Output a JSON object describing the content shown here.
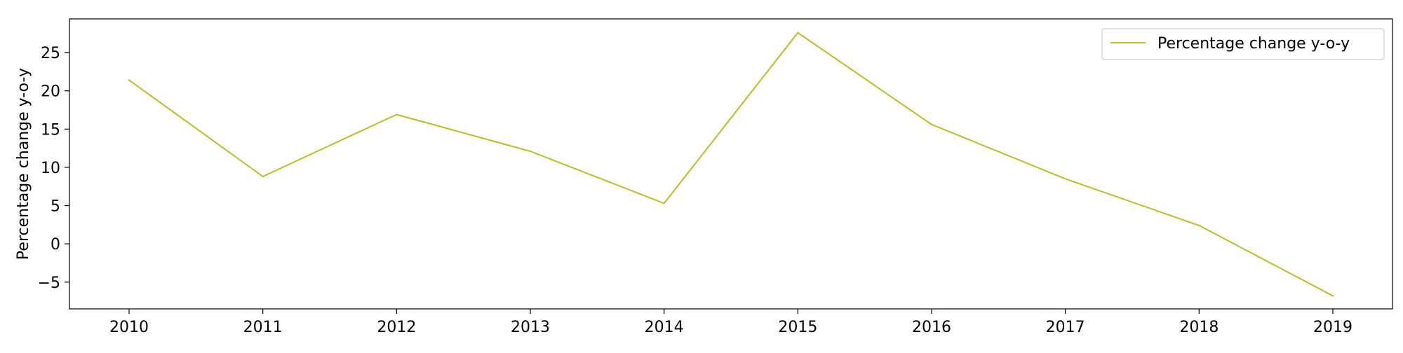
{
  "chart_data": {
    "type": "line",
    "title": "",
    "xlabel": "",
    "ylabel": "Percentage change y-o-y",
    "categories": [
      "2010",
      "2011",
      "2012",
      "2013",
      "2014",
      "2015",
      "2016",
      "2017",
      "2018",
      "2019"
    ],
    "series": [
      {
        "name": "Percentage change y-o-y",
        "values": [
          21.4,
          8.8,
          16.9,
          12.1,
          5.3,
          27.6,
          15.6,
          8.5,
          2.4,
          -6.8
        ],
        "color": "#bcbd22"
      }
    ],
    "yticks": [
      -5,
      0,
      5,
      10,
      15,
      20,
      25
    ],
    "ylim": [
      -8.5,
      29.4
    ],
    "grid": false,
    "legend_position": "top-right"
  }
}
